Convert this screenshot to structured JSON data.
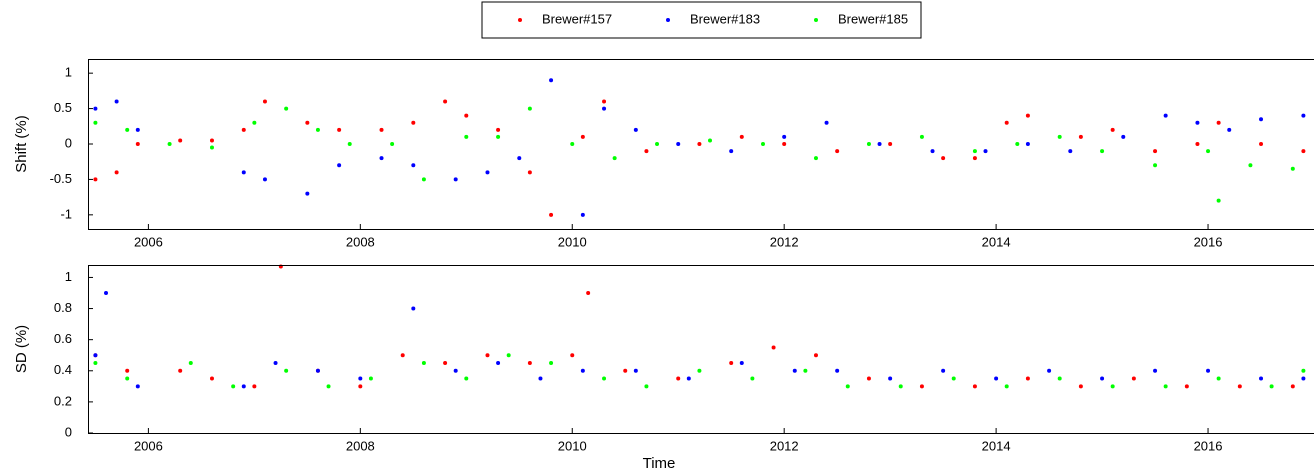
{
  "chart_data": [
    {
      "type": "scatter",
      "ylabel": "Shift (%)",
      "xlim": [
        2005.43,
        2017
      ],
      "xticks": [
        2006,
        2008,
        2010,
        2012,
        2014,
        2016
      ],
      "ylim": [
        -1.2,
        1.2
      ],
      "yticks": [
        -1,
        -0.5,
        0,
        0.5,
        1
      ],
      "series": [
        {
          "name": "Brewer#157",
          "color": "#ff0000",
          "x": [
            2005.5,
            2005.7,
            2005.9,
            2006.3,
            2006.6,
            2006.9,
            2007.1,
            2007.5,
            2007.8,
            2008.2,
            2008.5,
            2008.8,
            2009.0,
            2009.3,
            2009.6,
            2009.8,
            2010.1,
            2010.3,
            2010.7,
            2011.2,
            2011.6,
            2012.0,
            2012.5,
            2013.0,
            2013.5,
            2013.8,
            2014.1,
            2014.3,
            2014.8,
            2015.1,
            2015.5,
            2015.9,
            2016.1,
            2016.5,
            2016.9
          ],
          "values": [
            -0.5,
            -0.4,
            0,
            0.05,
            0.05,
            0.2,
            0.6,
            0.3,
            0.2,
            0.2,
            0.3,
            0.6,
            0.4,
            0.2,
            -0.4,
            -1.0,
            0.1,
            0.6,
            -0.1,
            0,
            0.1,
            0,
            -0.1,
            0,
            -0.2,
            -0.2,
            0.3,
            0.4,
            0.1,
            0.2,
            -0.1,
            0,
            0.3,
            0,
            -0.1
          ]
        },
        {
          "name": "Brewer#183",
          "color": "#0000ff",
          "x": [
            2005.5,
            2005.7,
            2005.9,
            2006.9,
            2007.1,
            2007.5,
            2007.8,
            2008.2,
            2008.5,
            2008.9,
            2009.2,
            2009.5,
            2009.8,
            2010.1,
            2010.3,
            2010.6,
            2011.0,
            2011.5,
            2012.0,
            2012.4,
            2012.9,
            2013.4,
            2013.9,
            2014.3,
            2014.7,
            2015.2,
            2015.6,
            2015.9,
            2016.2,
            2016.5,
            2016.9
          ],
          "values": [
            0.5,
            0.6,
            0.2,
            -0.4,
            -0.5,
            -0.7,
            -0.3,
            -0.2,
            -0.3,
            -0.5,
            -0.4,
            -0.2,
            0.9,
            -1.0,
            0.5,
            0.2,
            0,
            -0.1,
            0.1,
            0.3,
            0,
            -0.1,
            -0.1,
            0,
            -0.1,
            0.1,
            0.4,
            0.3,
            0.2,
            0.35,
            0.4
          ]
        },
        {
          "name": "Brewer#185",
          "color": "#00ff00",
          "x": [
            2005.5,
            2005.8,
            2006.2,
            2006.6,
            2007.0,
            2007.3,
            2007.6,
            2007.9,
            2008.3,
            2008.6,
            2009.0,
            2009.3,
            2009.6,
            2010.0,
            2010.4,
            2010.8,
            2011.3,
            2011.8,
            2012.3,
            2012.8,
            2013.3,
            2013.8,
            2014.2,
            2014.6,
            2015.0,
            2015.5,
            2016.0,
            2016.1,
            2016.4,
            2016.8
          ],
          "values": [
            0.3,
            0.2,
            0,
            -0.05,
            0.3,
            0.5,
            0.2,
            0,
            0,
            -0.5,
            0.1,
            0.1,
            0.5,
            0,
            -0.2,
            0,
            0.05,
            0,
            -0.2,
            0,
            0.1,
            -0.1,
            0,
            0.1,
            -0.1,
            -0.3,
            -0.1,
            -0.8,
            -0.3,
            -0.35
          ]
        }
      ]
    },
    {
      "type": "scatter",
      "ylabel": "SD (%)",
      "xlabel": "Time",
      "xlim": [
        2005.43,
        2017
      ],
      "xticks": [
        2006,
        2008,
        2010,
        2012,
        2014,
        2016
      ],
      "ylim": [
        0,
        1.08
      ],
      "yticks": [
        0,
        0.2,
        0.4,
        0.6,
        0.8,
        1
      ],
      "series": [
        {
          "name": "Brewer#157",
          "color": "#ff0000",
          "x": [
            2005.5,
            2005.8,
            2006.3,
            2006.6,
            2007.0,
            2007.25,
            2007.6,
            2008.0,
            2008.4,
            2008.8,
            2009.2,
            2009.6,
            2010.0,
            2010.15,
            2010.5,
            2011.0,
            2011.5,
            2011.9,
            2012.3,
            2012.8,
            2013.3,
            2013.8,
            2014.3,
            2014.8,
            2015.3,
            2015.8,
            2016.3,
            2016.8
          ],
          "values": [
            0.5,
            0.4,
            0.4,
            0.35,
            0.3,
            1.07,
            0.4,
            0.3,
            0.5,
            0.45,
            0.5,
            0.45,
            0.5,
            0.9,
            0.4,
            0.35,
            0.45,
            0.55,
            0.5,
            0.35,
            0.3,
            0.3,
            0.35,
            0.3,
            0.35,
            0.3,
            0.3,
            0.3
          ]
        },
        {
          "name": "Brewer#183",
          "color": "#0000ff",
          "x": [
            2005.5,
            2005.6,
            2005.9,
            2006.9,
            2007.2,
            2007.6,
            2008.0,
            2008.5,
            2008.9,
            2009.3,
            2009.7,
            2010.1,
            2010.6,
            2011.1,
            2011.6,
            2012.1,
            2012.5,
            2013.0,
            2013.5,
            2014.0,
            2014.5,
            2015.0,
            2015.5,
            2016.0,
            2016.5,
            2016.9
          ],
          "values": [
            0.5,
            0.9,
            0.3,
            0.3,
            0.45,
            0.4,
            0.35,
            0.8,
            0.4,
            0.45,
            0.35,
            0.4,
            0.4,
            0.35,
            0.45,
            0.4,
            0.4,
            0.35,
            0.4,
            0.35,
            0.4,
            0.35,
            0.4,
            0.4,
            0.35,
            0.35
          ]
        },
        {
          "name": "Brewer#185",
          "color": "#00ff00",
          "x": [
            2005.5,
            2005.8,
            2006.4,
            2006.8,
            2007.3,
            2007.7,
            2008.1,
            2008.6,
            2009.0,
            2009.4,
            2009.8,
            2010.3,
            2010.7,
            2011.2,
            2011.7,
            2012.2,
            2012.6,
            2013.1,
            2013.6,
            2014.1,
            2014.6,
            2015.1,
            2015.6,
            2016.1,
            2016.6,
            2016.9
          ],
          "values": [
            0.45,
            0.35,
            0.45,
            0.3,
            0.4,
            0.3,
            0.35,
            0.45,
            0.35,
            0.5,
            0.45,
            0.35,
            0.3,
            0.4,
            0.35,
            0.4,
            0.3,
            0.3,
            0.35,
            0.3,
            0.35,
            0.3,
            0.3,
            0.35,
            0.3,
            0.4
          ]
        }
      ]
    }
  ]
}
